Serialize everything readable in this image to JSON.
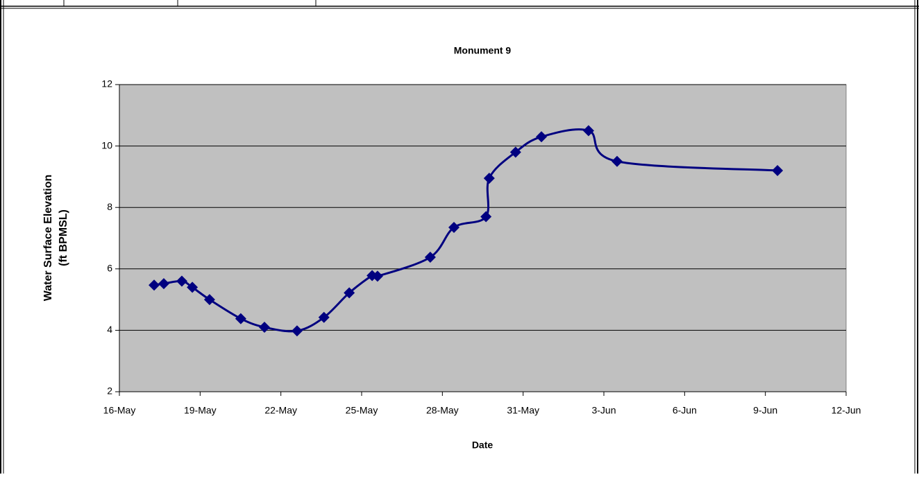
{
  "chart_data": {
    "type": "line",
    "title": "Monument 9",
    "xlabel": "Date",
    "ylabel": [
      "Water Surface Elevation",
      "(ft BPMSL)"
    ],
    "x": [
      17.29,
      17.65,
      18.32,
      18.71,
      19.35,
      20.51,
      21.39,
      22.6,
      23.6,
      24.54,
      25.39,
      25.59,
      27.55,
      28.43,
      29.62,
      29.74,
      30.72,
      31.68,
      33.43,
      34.49,
      40.45
    ],
    "series": [
      {
        "name": "Monument 9",
        "color": "#000080",
        "values": [
          5.47,
          5.52,
          5.6,
          5.4,
          5.0,
          4.38,
          4.1,
          3.98,
          4.42,
          5.22,
          5.78,
          5.76,
          6.38,
          7.35,
          7.7,
          8.95,
          9.8,
          10.3,
          10.5,
          9.5,
          9.2
        ]
      }
    ],
    "xlim": [
      16,
      43
    ],
    "xticks": [
      {
        "value": 16,
        "label": "16-May"
      },
      {
        "value": 19,
        "label": "19-May"
      },
      {
        "value": 22,
        "label": "22-May"
      },
      {
        "value": 25,
        "label": "25-May"
      },
      {
        "value": 28,
        "label": "28-May"
      },
      {
        "value": 31,
        "label": "31-May"
      },
      {
        "value": 34,
        "label": "3-Jun"
      },
      {
        "value": 37,
        "label": "6-Jun"
      },
      {
        "value": 40,
        "label": "9-Jun"
      },
      {
        "value": 43,
        "label": "12-Jun"
      }
    ],
    "ylim": [
      2,
      12
    ],
    "yticks": [
      2,
      4,
      6,
      8,
      10,
      12
    ],
    "grid": true,
    "plot_background": "#c0c0c0"
  }
}
